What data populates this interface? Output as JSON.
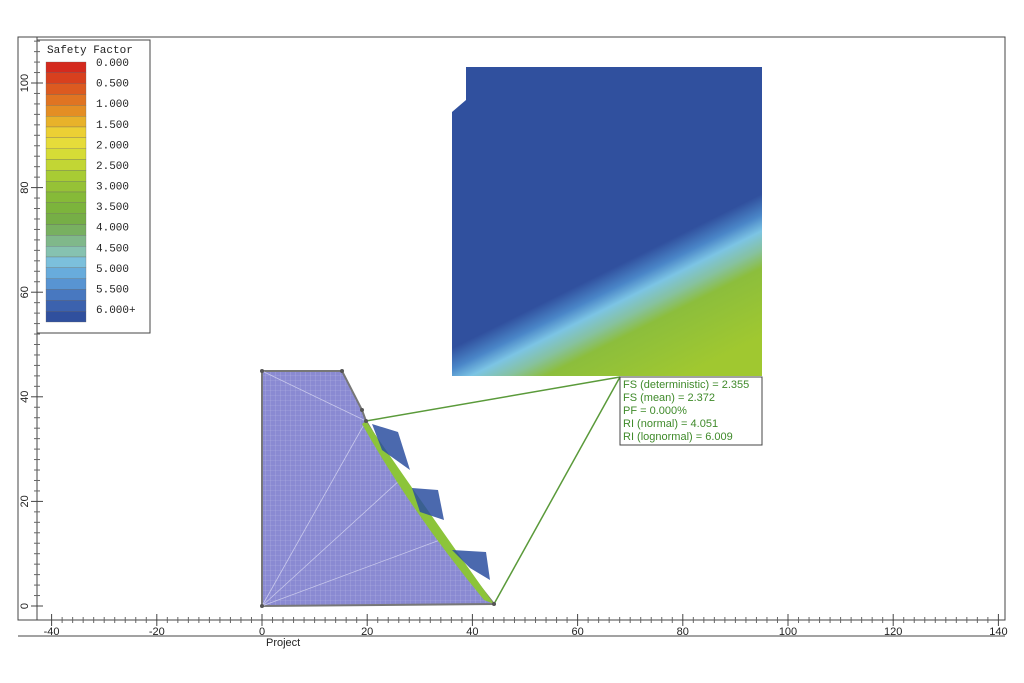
{
  "legend": {
    "title": "Safety Factor",
    "labels": [
      "0.000",
      "0.500",
      "1.000",
      "1.500",
      "2.000",
      "2.500",
      "3.000",
      "3.500",
      "4.000",
      "4.500",
      "5.000",
      "5.500",
      "6.000+"
    ],
    "colors": [
      "#d42a1e",
      "#d8401e",
      "#dc5a20",
      "#e07422",
      "#e48e24",
      "#e8b22a",
      "#ecd034",
      "#e6dc3a",
      "#d6dc36",
      "#c2d634",
      "#a8cc34",
      "#96c236",
      "#86ba38",
      "#7cb43c",
      "#76ae46",
      "#78b060",
      "#80b88a",
      "#86c2b0",
      "#7cc0dc",
      "#68acdc",
      "#5894d2",
      "#4878c0",
      "#3c62ae",
      "#30509e"
    ]
  },
  "axes": {
    "xticks": [
      -40,
      -20,
      0,
      20,
      40,
      60,
      80,
      100,
      120,
      140
    ],
    "yticks": [
      0,
      20,
      40,
      60,
      80,
      100
    ]
  },
  "info_box": [
    "FS (deterministic) = 2.355",
    "FS (mean) = 2.372",
    "PF = 0.000%",
    "RI (normal) = 4.051",
    "RI (lognormal) = 6.009"
  ],
  "footer": "Project"
}
